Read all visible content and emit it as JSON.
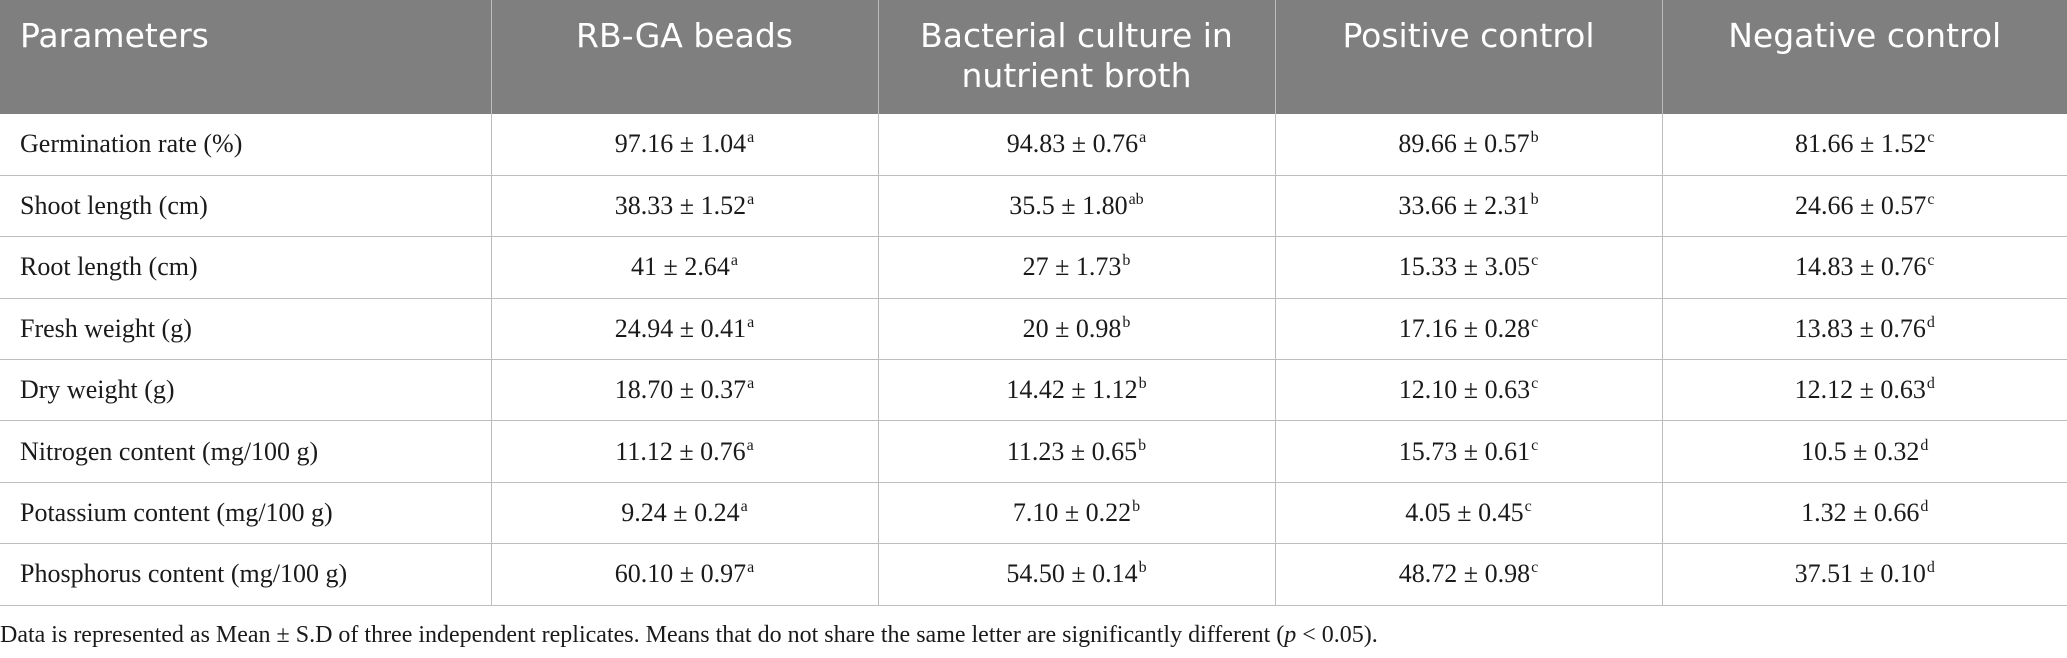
{
  "table": {
    "headers": [
      "Parameters",
      "RB-GA beads",
      "Bacterial culture in nutrient broth",
      "Positive control",
      "Negative control"
    ],
    "rows": [
      {
        "parameter": "Germination rate (%)",
        "cells": [
          {
            "value": "97.16 ± 1.04",
            "sup": "a"
          },
          {
            "value": "94.83 ± 0.76",
            "sup": "a"
          },
          {
            "value": "89.66 ± 0.57",
            "sup": "b"
          },
          {
            "value": "81.66 ± 1.52",
            "sup": "c"
          }
        ]
      },
      {
        "parameter": "Shoot length (cm)",
        "cells": [
          {
            "value": "38.33 ± 1.52",
            "sup": "a"
          },
          {
            "value": "35.5 ± 1.80",
            "sup": "ab"
          },
          {
            "value": "33.66 ± 2.31",
            "sup": "b"
          },
          {
            "value": "24.66 ± 0.57",
            "sup": "c"
          }
        ]
      },
      {
        "parameter": "Root length (cm)",
        "cells": [
          {
            "value": "41 ± 2.64",
            "sup": "a"
          },
          {
            "value": "27 ± 1.73",
            "sup": "b"
          },
          {
            "value": "15.33 ± 3.05",
            "sup": "c"
          },
          {
            "value": "14.83 ± 0.76",
            "sup": "c"
          }
        ]
      },
      {
        "parameter": "Fresh weight (g)",
        "cells": [
          {
            "value": "24.94 ± 0.41",
            "sup": "a"
          },
          {
            "value": "20 ± 0.98",
            "sup": "b"
          },
          {
            "value": "17.16 ± 0.28",
            "sup": "c"
          },
          {
            "value": "13.83 ± 0.76",
            "sup": "d"
          }
        ]
      },
      {
        "parameter": "Dry weight (g)",
        "cells": [
          {
            "value": "18.70 ± 0.37",
            "sup": "a"
          },
          {
            "value": "14.42 ± 1.12",
            "sup": "b"
          },
          {
            "value": "12.10 ± 0.63",
            "sup": "c"
          },
          {
            "value": "12.12 ± 0.63",
            "sup": "d"
          }
        ]
      },
      {
        "parameter": "Nitrogen content (mg/100 g)",
        "cells": [
          {
            "value": "11.12 ± 0.76",
            "sup": "a"
          },
          {
            "value": "11.23 ± 0.65",
            "sup": "b"
          },
          {
            "value": "15.73 ± 0.61",
            "sup": "c"
          },
          {
            "value": "10.5 ± 0.32",
            "sup": "d"
          }
        ]
      },
      {
        "parameter": "Potassium content (mg/100 g)",
        "cells": [
          {
            "value": "9.24 ± 0.24",
            "sup": "a"
          },
          {
            "value": "7.10 ± 0.22",
            "sup": "b"
          },
          {
            "value": "4.05 ± 0.45",
            "sup": "c"
          },
          {
            "value": "1.32 ± 0.66",
            "sup": "d"
          }
        ]
      },
      {
        "parameter": "Phosphorus content (mg/100 g)",
        "cells": [
          {
            "value": "60.10 ± 0.97",
            "sup": "a"
          },
          {
            "value": "54.50 ± 0.14",
            "sup": "b"
          },
          {
            "value": "48.72 ± 0.98",
            "sup": "c"
          },
          {
            "value": "37.51 ± 0.10",
            "sup": "d"
          }
        ]
      }
    ]
  },
  "footnote": {
    "text_before": "Data is represented as Mean ± S.D of three independent replicates. Means that do not share the same letter are significantly different (",
    "italic": "p",
    "text_after": " < 0.05)."
  },
  "colors": {
    "header_bg": "#7f7f7f",
    "header_text": "#ffffff",
    "grid": "#bdbdbd",
    "body_text": "#1a1a1a"
  }
}
